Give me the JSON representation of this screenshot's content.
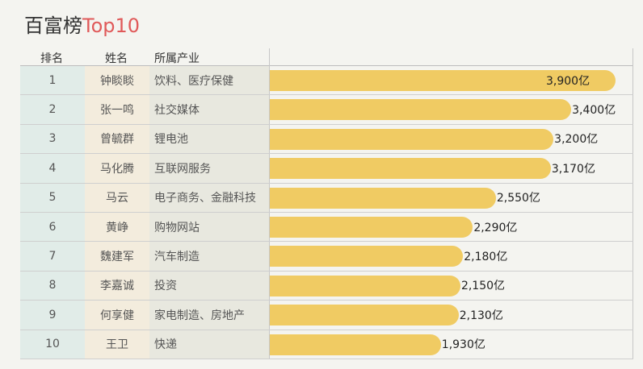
{
  "title": {
    "main": "百富榜",
    "accent": "Top10"
  },
  "headers": {
    "rank": "排名",
    "name": "姓名",
    "industry": "所属产业"
  },
  "colors": {
    "bar": "#f0cb63",
    "accent": "#e05a5a",
    "rank_bg": "#e1ece8",
    "name_bg": "#f3ecdd",
    "industry_bg": "#e8e8df"
  },
  "chart_data": {
    "type": "bar",
    "orientation": "horizontal",
    "title": "百富榜Top10",
    "unit": "亿",
    "categories": [
      "钟睒睒",
      "张一鸣",
      "曾毓群",
      "马化腾",
      "马云",
      "黄峥",
      "魏建军",
      "李嘉诚",
      "何享健",
      "王卫"
    ],
    "values": [
      3900,
      3400,
      3200,
      3170,
      2550,
      2290,
      2180,
      2150,
      2130,
      1930
    ],
    "rows": [
      {
        "rank": "1",
        "name": "钟睒睒",
        "industry": "饮料、医疗保健",
        "value": 3900,
        "label": "3,900亿"
      },
      {
        "rank": "2",
        "name": "张一鸣",
        "industry": "社交媒体",
        "value": 3400,
        "label": "3,400亿"
      },
      {
        "rank": "3",
        "name": "曾毓群",
        "industry": "锂电池",
        "value": 3200,
        "label": "3,200亿"
      },
      {
        "rank": "4",
        "name": "马化腾",
        "industry": "互联网服务",
        "value": 3170,
        "label": "3,170亿"
      },
      {
        "rank": "5",
        "name": "马云",
        "industry": "电子商务、金融科技",
        "value": 2550,
        "label": "2,550亿"
      },
      {
        "rank": "6",
        "name": "黄峥",
        "industry": "购物网站",
        "value": 2290,
        "label": "2,290亿"
      },
      {
        "rank": "7",
        "name": "魏建军",
        "industry": "汽车制造",
        "value": 2180,
        "label": "2,180亿"
      },
      {
        "rank": "8",
        "name": "李嘉诚",
        "industry": "投资",
        "value": 2150,
        "label": "2,150亿"
      },
      {
        "rank": "9",
        "name": "何享健",
        "industry": "家电制造、房地产",
        "value": 2130,
        "label": "2,130亿"
      },
      {
        "rank": "10",
        "name": "王卫",
        "industry": "快递",
        "value": 1930,
        "label": "1,930亿"
      }
    ]
  }
}
